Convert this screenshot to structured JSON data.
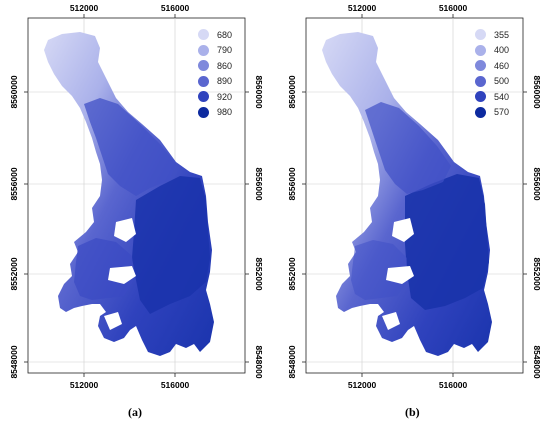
{
  "panels": [
    {
      "caption": "(a)",
      "x_ticks": [
        "512000",
        "516000"
      ],
      "y_ticks": [
        "8560000",
        "8556000",
        "8552000",
        "8548000"
      ],
      "legend": [
        {
          "label": "680",
          "color": "#d6d9f5"
        },
        {
          "label": "790",
          "color": "#aab1ea"
        },
        {
          "label": "860",
          "color": "#7f89dc"
        },
        {
          "label": "890",
          "color": "#5a66cf"
        },
        {
          "label": "920",
          "color": "#2f42bd"
        },
        {
          "label": "980",
          "color": "#0d2a9f"
        }
      ]
    },
    {
      "caption": "(b)",
      "x_ticks": [
        "512000",
        "516000"
      ],
      "y_ticks": [
        "8560000",
        "8556000",
        "8552000",
        "8548000"
      ],
      "legend": [
        {
          "label": "355",
          "color": "#d6d9f5"
        },
        {
          "label": "400",
          "color": "#aab1ea"
        },
        {
          "label": "460",
          "color": "#7f89dc"
        },
        {
          "label": "500",
          "color": "#5a66cf"
        },
        {
          "label": "540",
          "color": "#2f42bd"
        },
        {
          "label": "570",
          "color": "#0d2a9f"
        }
      ]
    }
  ]
}
